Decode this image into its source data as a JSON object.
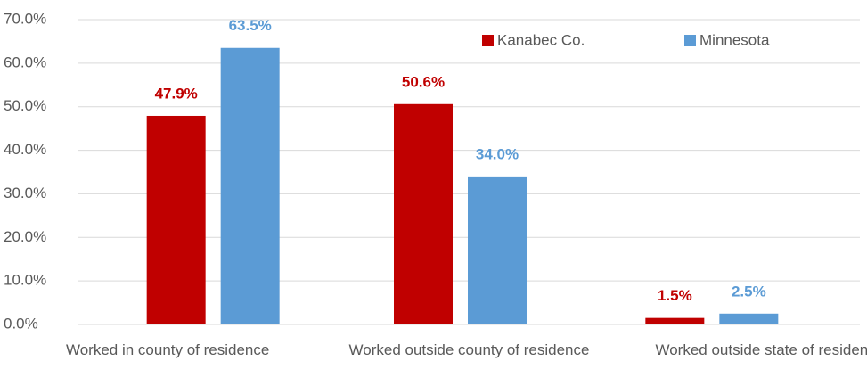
{
  "chart_data": {
    "type": "bar",
    "categories": [
      "Worked in county of residence",
      "Worked outside county of residence",
      "Worked outside state of residence"
    ],
    "series": [
      {
        "name": "Kanabec Co.",
        "color": "#c00000",
        "values": [
          47.9,
          50.6,
          1.5
        ],
        "value_labels": [
          "47.9%",
          "50.6%",
          "1.5%"
        ]
      },
      {
        "name": "Minnesota",
        "color": "#5b9bd5",
        "values": [
          63.5,
          34.0,
          2.5
        ],
        "value_labels": [
          "63.5%",
          "34.0%",
          "2.5%"
        ]
      }
    ],
    "ylim": [
      0,
      70
    ],
    "yticks": [
      {
        "value": 0,
        "label": "0.0%"
      },
      {
        "value": 10,
        "label": "10.0%"
      },
      {
        "value": 20,
        "label": "20.0%"
      },
      {
        "value": 30,
        "label": "30.0%"
      },
      {
        "value": 40,
        "label": "40.0%"
      },
      {
        "value": 50,
        "label": "50.0%"
      },
      {
        "value": 60,
        "label": "60.0%"
      },
      {
        "value": 70,
        "label": "70.0%"
      }
    ],
    "grid": true,
    "legend": "top"
  }
}
